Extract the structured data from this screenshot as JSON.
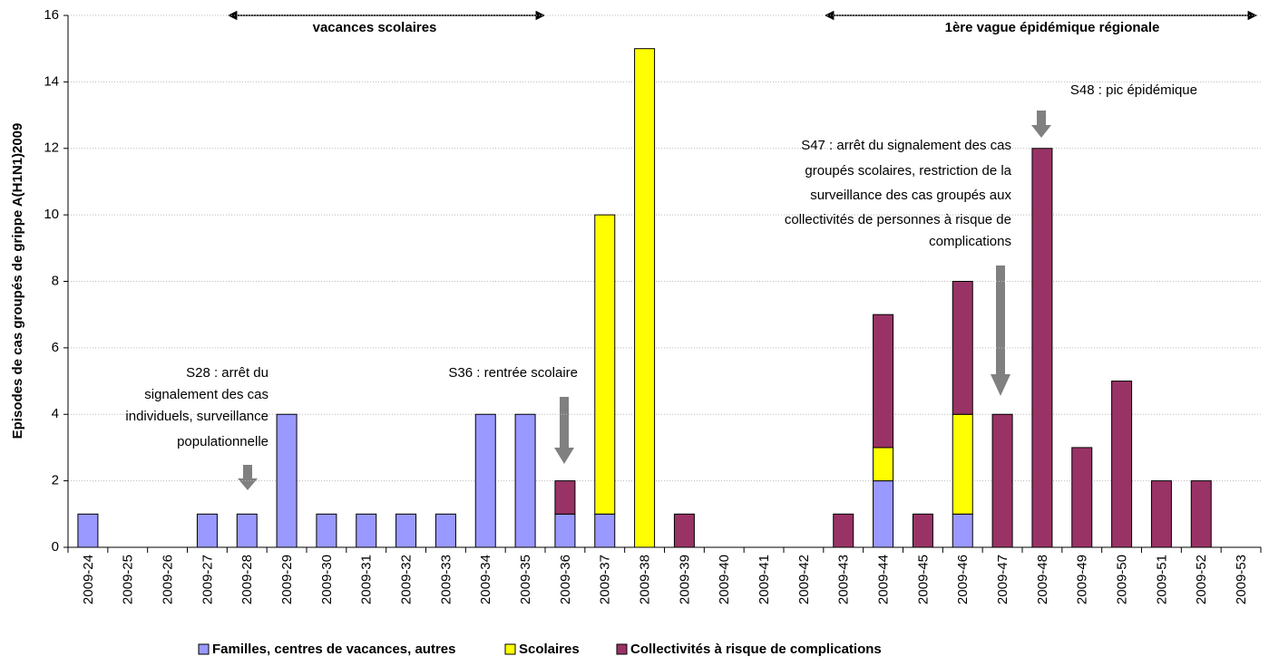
{
  "chart_data": {
    "type": "stacked_bar",
    "ylabel": "Episodes de cas groupés de grippe A(H1N1)2009",
    "categories": [
      "2009-24",
      "2009-25",
      "2009-26",
      "2009-27",
      "2009-28",
      "2009-29",
      "2009-30",
      "2009-31",
      "2009-32",
      "2009-33",
      "2009-34",
      "2009-35",
      "2009-36",
      "2009-37",
      "2009-38",
      "2009-39",
      "2009-40",
      "2009-41",
      "2009-42",
      "2009-43",
      "2009-44",
      "2009-45",
      "2009-46",
      "2009-47",
      "2009-48",
      "2009-49",
      "2009-50",
      "2009-51",
      "2009-52",
      "2009-53"
    ],
    "series": [
      {
        "name": "Familles, centres de vacances, autres",
        "color": "#9999ff",
        "values": [
          1,
          0,
          0,
          1,
          1,
          4,
          1,
          1,
          1,
          1,
          4,
          4,
          1,
          1,
          0,
          0,
          0,
          0,
          0,
          0,
          2,
          0,
          1,
          0,
          0,
          0,
          0,
          0,
          0,
          0
        ]
      },
      {
        "name": "Scolaires",
        "color": "#ffff00",
        "values": [
          0,
          0,
          0,
          0,
          0,
          0,
          0,
          0,
          0,
          0,
          0,
          0,
          0,
          9,
          15,
          0,
          0,
          0,
          0,
          0,
          1,
          0,
          3,
          0,
          0,
          0,
          0,
          0,
          0,
          0
        ]
      },
      {
        "name": "Collectivités à risque de complications",
        "color": "#993366",
        "values": [
          0,
          0,
          0,
          0,
          0,
          0,
          0,
          0,
          0,
          0,
          0,
          0,
          1,
          0,
          0,
          1,
          0,
          0,
          0,
          1,
          4,
          1,
          4,
          4,
          12,
          3,
          5,
          2,
          2,
          0
        ]
      }
    ],
    "ylim": [
      0,
      16
    ],
    "yticks": [
      0,
      2,
      4,
      6,
      8,
      10,
      12,
      14,
      16
    ],
    "grid": true,
    "periods": [
      "vacances scolaires",
      "1ère vague épidémique régionale"
    ],
    "annotations": [
      {
        "lines": [
          "S28 : arrêt du",
          "signalement des cas",
          "individuels, surveillance",
          "populationnelle"
        ]
      },
      {
        "lines": [
          "S36 : rentrée scolaire"
        ]
      },
      {
        "lines": [
          "S47 : arrêt du signalement des cas",
          "groupés scolaires, restriction de la",
          "surveillance des cas groupés aux",
          "collectivités de personnes à risque de",
          "complications"
        ]
      },
      {
        "lines": [
          "S48 : pic épidémique"
        ]
      }
    ]
  }
}
